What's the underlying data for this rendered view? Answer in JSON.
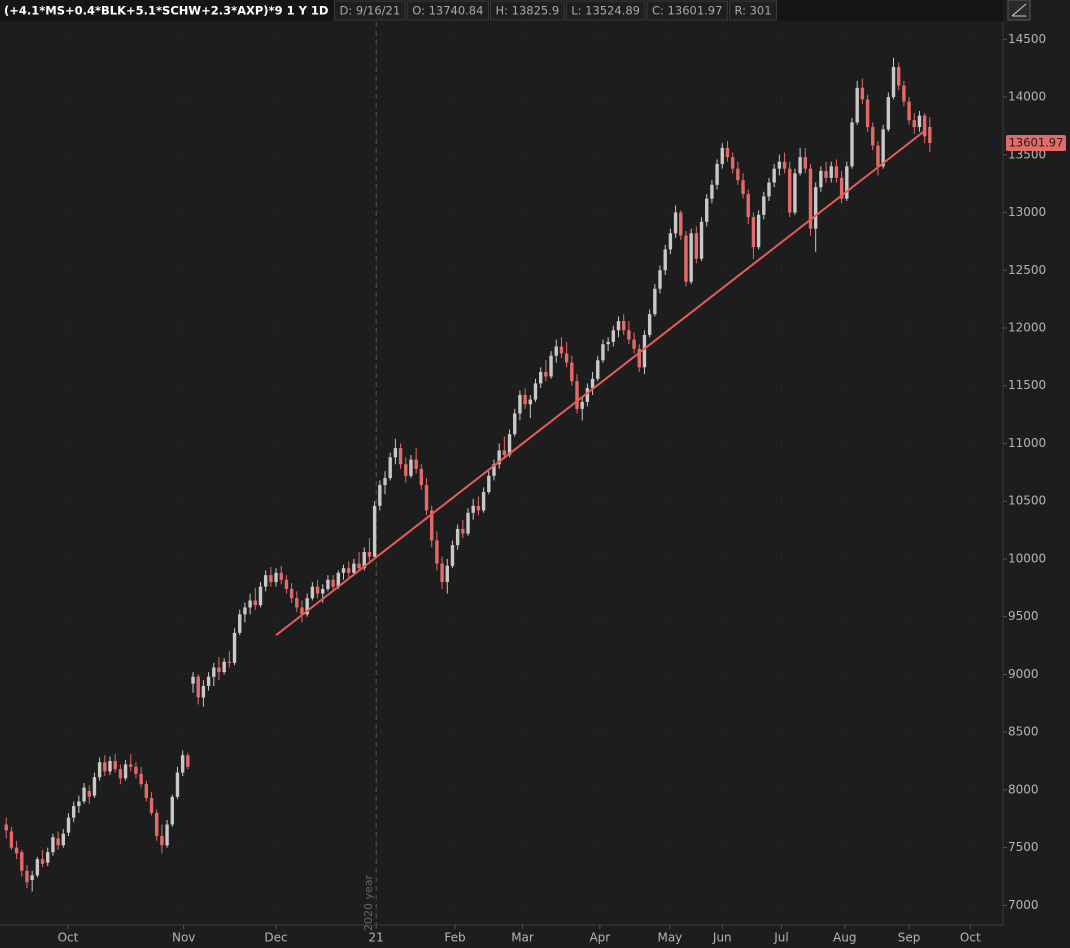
{
  "chart_data": {
    "type": "candlestick",
    "header_title": "(+4.1*MS+0.4*BLK+5.1*SCHW+2.3*AXP)*9 1 Y 1D",
    "header_fields": [
      "D: 9/16/21",
      "O: 13740.84",
      "H: 13825.9",
      "L: 13524.89",
      "C: 13601.97",
      "R: 301"
    ],
    "up_color": "#c8c8c8",
    "down_color": "#e46a6a",
    "ylim": [
      6830,
      14650
    ],
    "yticks": [
      7000,
      7500,
      8000,
      8500,
      9000,
      9500,
      10000,
      10500,
      11000,
      11500,
      12000,
      12500,
      13000,
      13500,
      14000,
      14500
    ],
    "xlim": [
      -1.2,
      192.1
    ],
    "xticks": [
      {
        "value": 11.9,
        "label": "Oct"
      },
      {
        "value": 34.2,
        "label": "Nov"
      },
      {
        "value": 52.0,
        "label": "Dec"
      },
      {
        "value": 71.3,
        "label": "21"
      },
      {
        "value": 86.5,
        "label": "Feb"
      },
      {
        "value": 99.5,
        "label": "Mar"
      },
      {
        "value": 114.4,
        "label": "Apr"
      },
      {
        "value": 127.9,
        "label": "May"
      },
      {
        "value": 138,
        "label": "Jun"
      },
      {
        "value": 149.4,
        "label": "Jul"
      },
      {
        "value": 161.6,
        "label": "Aug"
      },
      {
        "value": 174.0,
        "label": "Sep"
      },
      {
        "value": 185.8,
        "label": "Oct"
      }
    ],
    "grid": true,
    "year_marker": {
      "x": 71.3,
      "label": "2020 year"
    },
    "trendline": {
      "x": [
        52,
        176.8
      ],
      "y": [
        9340,
        13700
      ],
      "color": "#e85a5a"
    },
    "ohlc": [
      [
        7700,
        7760,
        7580,
        7650
      ],
      [
        7640,
        7680,
        7480,
        7500
      ],
      [
        7500,
        7560,
        7400,
        7450
      ],
      [
        7460,
        7480,
        7250,
        7300
      ],
      [
        7300,
        7350,
        7150,
        7200
      ],
      [
        7220,
        7300,
        7120,
        7260
      ],
      [
        7260,
        7420,
        7240,
        7400
      ],
      [
        7400,
        7480,
        7330,
        7360
      ],
      [
        7370,
        7500,
        7340,
        7460
      ],
      [
        7460,
        7620,
        7430,
        7590
      ],
      [
        7580,
        7640,
        7480,
        7520
      ],
      [
        7520,
        7660,
        7500,
        7620
      ],
      [
        7630,
        7800,
        7600,
        7760
      ],
      [
        7760,
        7900,
        7720,
        7860
      ],
      [
        7860,
        7950,
        7800,
        7900
      ],
      [
        7900,
        8060,
        7880,
        8020
      ],
      [
        7990,
        8040,
        7880,
        7940
      ],
      [
        7950,
        8150,
        7930,
        8110
      ],
      [
        8110,
        8280,
        8080,
        8240
      ],
      [
        8240,
        8300,
        8120,
        8160
      ],
      [
        8160,
        8290,
        8130,
        8250
      ],
      [
        8250,
        8310,
        8150,
        8180
      ],
      [
        8180,
        8220,
        8050,
        8100
      ],
      [
        8100,
        8260,
        8080,
        8220
      ],
      [
        8220,
        8310,
        8160,
        8200
      ],
      [
        8200,
        8240,
        8100,
        8140
      ],
      [
        8140,
        8200,
        8020,
        8050
      ],
      [
        8050,
        8080,
        7900,
        7930
      ],
      [
        7930,
        7980,
        7780,
        7800
      ],
      [
        7800,
        7830,
        7560,
        7600
      ],
      [
        7600,
        7700,
        7450,
        7520
      ],
      [
        7520,
        7740,
        7500,
        7700
      ],
      [
        7700,
        7960,
        7680,
        7940
      ],
      [
        7940,
        8200,
        7920,
        8150
      ],
      [
        8150,
        8340,
        8120,
        8300
      ],
      [
        8300,
        8320,
        8180,
        8200
      ],
      [
        8920,
        9020,
        8840,
        8980
      ],
      [
        8980,
        9000,
        8740,
        8800
      ],
      [
        8800,
        8950,
        8720,
        8900
      ],
      [
        8900,
        9020,
        8860,
        8980
      ],
      [
        8980,
        9100,
        8900,
        9060
      ],
      [
        9060,
        9150,
        8950,
        9020
      ],
      [
        9020,
        9140,
        9000,
        9110
      ],
      [
        9110,
        9200,
        9060,
        9100
      ],
      [
        9100,
        9400,
        9080,
        9360
      ],
      [
        9360,
        9560,
        9340,
        9520
      ],
      [
        9520,
        9620,
        9450,
        9580
      ],
      [
        9580,
        9700,
        9520,
        9640
      ],
      [
        9640,
        9750,
        9560,
        9600
      ],
      [
        9600,
        9800,
        9580,
        9760
      ],
      [
        9760,
        9900,
        9720,
        9860
      ],
      [
        9860,
        9930,
        9760,
        9800
      ],
      [
        9800,
        9920,
        9760,
        9880
      ],
      [
        9880,
        9940,
        9780,
        9820
      ],
      [
        9820,
        9860,
        9700,
        9740
      ],
      [
        9740,
        9790,
        9620,
        9660
      ],
      [
        9660,
        9720,
        9540,
        9580
      ],
      [
        9580,
        9640,
        9450,
        9520
      ],
      [
        9520,
        9700,
        9500,
        9660
      ],
      [
        9660,
        9800,
        9640,
        9760
      ],
      [
        9760,
        9820,
        9660,
        9700
      ],
      [
        9700,
        9780,
        9620,
        9740
      ],
      [
        9740,
        9860,
        9720,
        9820
      ],
      [
        9820,
        9860,
        9720,
        9760
      ],
      [
        9760,
        9900,
        9740,
        9880
      ],
      [
        9880,
        9950,
        9820,
        9920
      ],
      [
        9920,
        9980,
        9840,
        9880
      ],
      [
        9880,
        10000,
        9860,
        9960
      ],
      [
        9960,
        10060,
        9900,
        9920
      ],
      [
        9920,
        10100,
        9900,
        10060
      ],
      [
        10060,
        10180,
        9980,
        10020
      ],
      [
        10020,
        10500,
        10000,
        10460
      ],
      [
        10460,
        10680,
        10420,
        10640
      ],
      [
        10640,
        10760,
        10560,
        10700
      ],
      [
        10700,
        10920,
        10680,
        10880
      ],
      [
        10880,
        11040,
        10820,
        10960
      ],
      [
        10960,
        11000,
        10780,
        10820
      ],
      [
        10820,
        10880,
        10660,
        10720
      ],
      [
        10720,
        10900,
        10700,
        10860
      ],
      [
        10860,
        10960,
        10740,
        10780
      ],
      [
        10780,
        10820,
        10600,
        10640
      ],
      [
        10640,
        10700,
        10380,
        10420
      ],
      [
        10420,
        10460,
        10100,
        10160
      ],
      [
        10160,
        10240,
        9900,
        9960
      ],
      [
        9960,
        10020,
        9740,
        9800
      ],
      [
        9800,
        10000,
        9700,
        9940
      ],
      [
        9940,
        10160,
        9920,
        10120
      ],
      [
        10120,
        10300,
        10080,
        10260
      ],
      [
        10260,
        10340,
        10180,
        10220
      ],
      [
        10220,
        10440,
        10200,
        10400
      ],
      [
        10400,
        10520,
        10340,
        10460
      ],
      [
        10460,
        10540,
        10380,
        10420
      ],
      [
        10420,
        10620,
        10400,
        10580
      ],
      [
        10580,
        10760,
        10560,
        10720
      ],
      [
        10720,
        10860,
        10680,
        10820
      ],
      [
        10820,
        11000,
        10780,
        10940
      ],
      [
        10940,
        11060,
        10880,
        10900
      ],
      [
        10900,
        11120,
        10880,
        11080
      ],
      [
        11080,
        11300,
        11060,
        11260
      ],
      [
        11260,
        11460,
        11200,
        11420
      ],
      [
        11420,
        11480,
        11300,
        11340
      ],
      [
        11340,
        11420,
        11220,
        11380
      ],
      [
        11380,
        11560,
        11360,
        11520
      ],
      [
        11520,
        11660,
        11480,
        11620
      ],
      [
        11620,
        11720,
        11540,
        11580
      ],
      [
        11580,
        11800,
        11560,
        11760
      ],
      [
        11760,
        11900,
        11700,
        11840
      ],
      [
        11840,
        11920,
        11740,
        11780
      ],
      [
        11780,
        11880,
        11660,
        11700
      ],
      [
        11700,
        11760,
        11500,
        11540
      ],
      [
        11540,
        11600,
        11260,
        11300
      ],
      [
        11300,
        11400,
        11200,
        11360
      ],
      [
        11360,
        11520,
        11320,
        11480
      ],
      [
        11480,
        11620,
        11420,
        11560
      ],
      [
        11560,
        11760,
        11540,
        11720
      ],
      [
        11720,
        11900,
        11700,
        11860
      ],
      [
        11860,
        11920,
        11800,
        11880
      ],
      [
        11880,
        12020,
        11840,
        11980
      ],
      [
        11980,
        12100,
        11920,
        12060
      ],
      [
        12060,
        12120,
        11940,
        11980
      ],
      [
        11980,
        12060,
        11860,
        11900
      ],
      [
        11900,
        11960,
        11780,
        11820
      ],
      [
        11820,
        11860,
        11620,
        11660
      ],
      [
        11660,
        11980,
        11600,
        11940
      ],
      [
        11940,
        12160,
        11920,
        12120
      ],
      [
        12120,
        12380,
        12100,
        12340
      ],
      [
        12340,
        12540,
        12300,
        12500
      ],
      [
        12500,
        12720,
        12460,
        12680
      ],
      [
        12680,
        12860,
        12640,
        12820
      ],
      [
        12820,
        13060,
        12780,
        13000
      ],
      [
        13000,
        13020,
        12760,
        12800
      ],
      [
        12800,
        12840,
        12360,
        12400
      ],
      [
        12400,
        12860,
        12380,
        12820
      ],
      [
        12820,
        12880,
        12560,
        12600
      ],
      [
        12600,
        12960,
        12580,
        12920
      ],
      [
        12920,
        13160,
        12880,
        13120
      ],
      [
        13120,
        13280,
        13080,
        13240
      ],
      [
        13240,
        13460,
        13200,
        13420
      ],
      [
        13420,
        13600,
        13380,
        13560
      ],
      [
        13560,
        13620,
        13440,
        13480
      ],
      [
        13480,
        13520,
        13340,
        13380
      ],
      [
        13380,
        13440,
        13240,
        13280
      ],
      [
        13280,
        13340,
        13120,
        13160
      ],
      [
        13160,
        13200,
        12900,
        12960
      ],
      [
        12960,
        13000,
        12600,
        12700
      ],
      [
        12700,
        13020,
        12680,
        12980
      ],
      [
        12980,
        13180,
        12940,
        13140
      ],
      [
        13140,
        13300,
        13100,
        13260
      ],
      [
        13260,
        13420,
        13220,
        13380
      ],
      [
        13380,
        13500,
        13320,
        13440
      ],
      [
        13440,
        13520,
        13340,
        13380
      ],
      [
        13380,
        13440,
        12960,
        13000
      ],
      [
        13000,
        13380,
        12980,
        13340
      ],
      [
        13340,
        13560,
        13320,
        13480
      ],
      [
        13480,
        13560,
        13340,
        13380
      ],
      [
        13380,
        13420,
        12800,
        12860
      ],
      [
        12860,
        13260,
        12660,
        13220
      ],
      [
        13220,
        13400,
        13180,
        13360
      ],
      [
        13360,
        13440,
        13260,
        13300
      ],
      [
        13300,
        13440,
        13260,
        13400
      ],
      [
        13400,
        13460,
        13260,
        13300
      ],
      [
        13300,
        13360,
        13080,
        13120
      ],
      [
        13120,
        13440,
        13100,
        13400
      ],
      [
        13400,
        13820,
        13380,
        13780
      ],
      [
        13780,
        14140,
        13760,
        14080
      ],
      [
        14080,
        14160,
        13940,
        13980
      ],
      [
        13980,
        14020,
        13700,
        13740
      ],
      [
        13740,
        13780,
        13540,
        13580
      ],
      [
        13580,
        13620,
        13320,
        13400
      ],
      [
        13400,
        13760,
        13380,
        13720
      ],
      [
        13720,
        14040,
        13700,
        14000
      ],
      [
        14000,
        14340,
        13980,
        14260
      ],
      [
        14260,
        14300,
        14060,
        14100
      ],
      [
        14100,
        14140,
        13920,
        13960
      ],
      [
        13960,
        14000,
        13760,
        13800
      ],
      [
        13800,
        13860,
        13680,
        13740
      ],
      [
        13740,
        13880,
        13700,
        13840
      ],
      [
        13840,
        13860,
        13600,
        13660
      ],
      [
        13740.84,
        13825.9,
        13524.89,
        13601.97
      ]
    ]
  }
}
